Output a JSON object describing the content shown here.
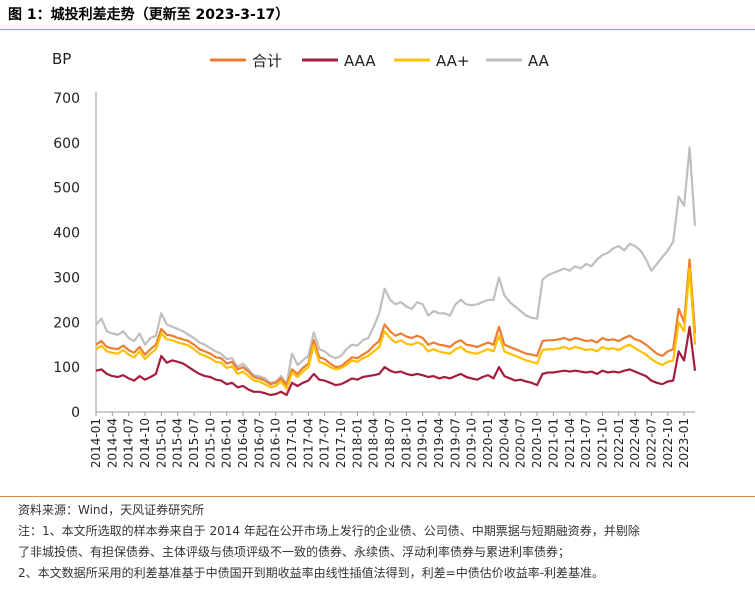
{
  "figure_title": "图 1：城投利差走势（更新至 2023-3-17）",
  "source": "资料来源：Wind，天风证券研究所",
  "notes": [
    "注：1、本文所选取的样本券来自于 2014 年起在公开市场上发行的企业债、公司债、中期票据与短期融资券，并剔除",
    "了非城投债、有担保债券、主体评级与债项评级不一致的债券、永续债、浮动利率债券与累进利率债券；",
    "2、本文数据所采用的利差基准基于中债国开到期收益率由线性插值法得到，利差=中债估价收益率-利差基准。"
  ],
  "chart_data": {
    "type": "line",
    "ylabel": "BP",
    "ylim": [
      0,
      700
    ],
    "yticks": [
      0,
      100,
      200,
      300,
      400,
      500,
      600,
      700
    ],
    "x_start": "2014-01",
    "x_end": "2023-03",
    "tick_labels": [
      "2014-01",
      "2014-04",
      "2014-07",
      "2014-10",
      "2015-01",
      "2015-04",
      "2015-07",
      "2015-10",
      "2016-01",
      "2016-04",
      "2016-07",
      "2016-10",
      "2017-01",
      "2017-04",
      "2017-07",
      "2017-10",
      "2018-01",
      "2018-04",
      "2018-07",
      "2018-10",
      "2019-01",
      "2019-04",
      "2019-07",
      "2019-10",
      "2020-01",
      "2020-04",
      "2020-07",
      "2020-10",
      "2021-01",
      "2021-04",
      "2021-07",
      "2021-10",
      "2022-01",
      "2022-04",
      "2022-07",
      "2022-10",
      "2023-01"
    ],
    "legend_position": "top",
    "grid": false,
    "series": [
      {
        "name": "合计",
        "color": "#ED7D31",
        "x": [
          "2014-01",
          "2014-02",
          "2014-03",
          "2014-04",
          "2014-05",
          "2014-06",
          "2014-07",
          "2014-08",
          "2014-09",
          "2014-10",
          "2014-11",
          "2014-12",
          "2015-01",
          "2015-02",
          "2015-03",
          "2015-04",
          "2015-05",
          "2015-06",
          "2015-07",
          "2015-08",
          "2015-09",
          "2015-10",
          "2015-11",
          "2015-12",
          "2016-01",
          "2016-02",
          "2016-03",
          "2016-04",
          "2016-05",
          "2016-06",
          "2016-07",
          "2016-08",
          "2016-09",
          "2016-10",
          "2016-11",
          "2016-12",
          "2017-01",
          "2017-02",
          "2017-03",
          "2017-04",
          "2017-05",
          "2017-06",
          "2017-07",
          "2017-08",
          "2017-09",
          "2017-10",
          "2017-11",
          "2017-12",
          "2018-01",
          "2018-02",
          "2018-03",
          "2018-04",
          "2018-05",
          "2018-06",
          "2018-07",
          "2018-08",
          "2018-09",
          "2018-10",
          "2018-11",
          "2018-12",
          "2019-01",
          "2019-02",
          "2019-03",
          "2019-04",
          "2019-05",
          "2019-06",
          "2019-07",
          "2019-08",
          "2019-09",
          "2019-10",
          "2019-11",
          "2019-12",
          "2020-01",
          "2020-02",
          "2020-03",
          "2020-04",
          "2020-05",
          "2020-06",
          "2020-07",
          "2020-08",
          "2020-09",
          "2020-10",
          "2020-11",
          "2020-12",
          "2021-01",
          "2021-02",
          "2021-03",
          "2021-04",
          "2021-05",
          "2021-06",
          "2021-07",
          "2021-08",
          "2021-09",
          "2021-10",
          "2021-11",
          "2021-12",
          "2022-01",
          "2022-02",
          "2022-03",
          "2022-04",
          "2022-05",
          "2022-06",
          "2022-07",
          "2022-08",
          "2022-09",
          "2022-10",
          "2022-11",
          "2022-12",
          "2023-01",
          "2023-02",
          "2023-03"
        ],
        "values": [
          150,
          158,
          145,
          142,
          140,
          148,
          138,
          132,
          145,
          128,
          140,
          150,
          185,
          172,
          170,
          165,
          162,
          158,
          150,
          140,
          135,
          130,
          122,
          120,
          108,
          112,
          95,
          100,
          90,
          78,
          75,
          70,
          62,
          65,
          75,
          60,
          95,
          85,
          98,
          108,
          160,
          122,
          118,
          108,
          100,
          102,
          112,
          122,
          120,
          128,
          135,
          148,
          158,
          195,
          180,
          170,
          175,
          168,
          165,
          170,
          165,
          150,
          155,
          150,
          148,
          145,
          155,
          160,
          150,
          148,
          145,
          150,
          155,
          150,
          190,
          150,
          145,
          140,
          135,
          130,
          128,
          125,
          158,
          160,
          160,
          162,
          165,
          160,
          165,
          162,
          158,
          160,
          155,
          165,
          160,
          162,
          158,
          165,
          170,
          162,
          158,
          150,
          140,
          130,
          125,
          135,
          140,
          230,
          200,
          340,
          175
        ]
      },
      {
        "name": "AAA",
        "color": "#A51C3F",
        "x": [
          "2014-01",
          "2014-02",
          "2014-03",
          "2014-04",
          "2014-05",
          "2014-06",
          "2014-07",
          "2014-08",
          "2014-09",
          "2014-10",
          "2014-11",
          "2014-12",
          "2015-01",
          "2015-02",
          "2015-03",
          "2015-04",
          "2015-05",
          "2015-06",
          "2015-07",
          "2015-08",
          "2015-09",
          "2015-10",
          "2015-11",
          "2015-12",
          "2016-01",
          "2016-02",
          "2016-03",
          "2016-04",
          "2016-05",
          "2016-06",
          "2016-07",
          "2016-08",
          "2016-09",
          "2016-10",
          "2016-11",
          "2016-12",
          "2017-01",
          "2017-02",
          "2017-03",
          "2017-04",
          "2017-05",
          "2017-06",
          "2017-07",
          "2017-08",
          "2017-09",
          "2017-10",
          "2017-11",
          "2017-12",
          "2018-01",
          "2018-02",
          "2018-03",
          "2018-04",
          "2018-05",
          "2018-06",
          "2018-07",
          "2018-08",
          "2018-09",
          "2018-10",
          "2018-11",
          "2018-12",
          "2019-01",
          "2019-02",
          "2019-03",
          "2019-04",
          "2019-05",
          "2019-06",
          "2019-07",
          "2019-08",
          "2019-09",
          "2019-10",
          "2019-11",
          "2019-12",
          "2020-01",
          "2020-02",
          "2020-03",
          "2020-04",
          "2020-05",
          "2020-06",
          "2020-07",
          "2020-08",
          "2020-09",
          "2020-10",
          "2020-11",
          "2020-12",
          "2021-01",
          "2021-02",
          "2021-03",
          "2021-04",
          "2021-05",
          "2021-06",
          "2021-07",
          "2021-08",
          "2021-09",
          "2021-10",
          "2021-11",
          "2021-12",
          "2022-01",
          "2022-02",
          "2022-03",
          "2022-04",
          "2022-05",
          "2022-06",
          "2022-07",
          "2022-08",
          "2022-09",
          "2022-10",
          "2022-11",
          "2022-12",
          "2023-01",
          "2023-02",
          "2023-03"
        ],
        "values": [
          92,
          95,
          85,
          80,
          78,
          82,
          75,
          70,
          80,
          72,
          78,
          85,
          125,
          110,
          115,
          112,
          108,
          100,
          92,
          85,
          80,
          78,
          72,
          70,
          62,
          65,
          55,
          58,
          50,
          45,
          45,
          42,
          38,
          40,
          45,
          38,
          65,
          58,
          65,
          70,
          85,
          72,
          70,
          65,
          60,
          62,
          68,
          75,
          72,
          78,
          80,
          82,
          85,
          100,
          92,
          88,
          90,
          85,
          82,
          85,
          82,
          78,
          80,
          75,
          78,
          75,
          80,
          85,
          78,
          75,
          72,
          78,
          82,
          75,
          100,
          80,
          75,
          70,
          72,
          68,
          65,
          60,
          85,
          88,
          88,
          90,
          92,
          90,
          92,
          90,
          88,
          90,
          85,
          92,
          88,
          90,
          88,
          92,
          95,
          90,
          85,
          80,
          70,
          65,
          62,
          68,
          70,
          135,
          115,
          190,
          92
        ]
      },
      {
        "name": "AA+",
        "color": "#FFC000",
        "x": [
          "2014-01",
          "2014-02",
          "2014-03",
          "2014-04",
          "2014-05",
          "2014-06",
          "2014-07",
          "2014-08",
          "2014-09",
          "2014-10",
          "2014-11",
          "2014-12",
          "2015-01",
          "2015-02",
          "2015-03",
          "2015-04",
          "2015-05",
          "2015-06",
          "2015-07",
          "2015-08",
          "2015-09",
          "2015-10",
          "2015-11",
          "2015-12",
          "2016-01",
          "2016-02",
          "2016-03",
          "2016-04",
          "2016-05",
          "2016-06",
          "2016-07",
          "2016-08",
          "2016-09",
          "2016-10",
          "2016-11",
          "2016-12",
          "2017-01",
          "2017-02",
          "2017-03",
          "2017-04",
          "2017-05",
          "2017-06",
          "2017-07",
          "2017-08",
          "2017-09",
          "2017-10",
          "2017-11",
          "2017-12",
          "2018-01",
          "2018-02",
          "2018-03",
          "2018-04",
          "2018-05",
          "2018-06",
          "2018-07",
          "2018-08",
          "2018-09",
          "2018-10",
          "2018-11",
          "2018-12",
          "2019-01",
          "2019-02",
          "2019-03",
          "2019-04",
          "2019-05",
          "2019-06",
          "2019-07",
          "2019-08",
          "2019-09",
          "2019-10",
          "2019-11",
          "2019-12",
          "2020-01",
          "2020-02",
          "2020-03",
          "2020-04",
          "2020-05",
          "2020-06",
          "2020-07",
          "2020-08",
          "2020-09",
          "2020-10",
          "2020-11",
          "2020-12",
          "2021-01",
          "2021-02",
          "2021-03",
          "2021-04",
          "2021-05",
          "2021-06",
          "2021-07",
          "2021-08",
          "2021-09",
          "2021-10",
          "2021-11",
          "2021-12",
          "2022-01",
          "2022-02",
          "2022-03",
          "2022-04",
          "2022-05",
          "2022-06",
          "2022-07",
          "2022-08",
          "2022-09",
          "2022-10",
          "2022-11",
          "2022-12",
          "2023-01",
          "2023-02",
          "2023-03"
        ],
        "values": [
          140,
          148,
          135,
          132,
          130,
          138,
          128,
          122,
          135,
          118,
          130,
          140,
          175,
          162,
          160,
          155,
          152,
          148,
          140,
          130,
          125,
          120,
          112,
          110,
          98,
          102,
          85,
          90,
          80,
          70,
          68,
          62,
          55,
          58,
          68,
          52,
          88,
          78,
          90,
          100,
          150,
          112,
          108,
          100,
          95,
          98,
          105,
          115,
          112,
          120,
          125,
          135,
          145,
          180,
          165,
          155,
          160,
          152,
          150,
          155,
          150,
          135,
          140,
          135,
          132,
          130,
          140,
          145,
          135,
          132,
          130,
          135,
          140,
          135,
          170,
          135,
          130,
          125,
          120,
          115,
          112,
          108,
          138,
          140,
          140,
          142,
          145,
          140,
          145,
          142,
          138,
          140,
          135,
          145,
          140,
          142,
          138,
          145,
          150,
          142,
          135,
          128,
          118,
          110,
          105,
          112,
          115,
          200,
          180,
          320,
          150
        ]
      },
      {
        "name": "AA",
        "color": "#BFBFBF",
        "x": [
          "2014-01",
          "2014-02",
          "2014-03",
          "2014-04",
          "2014-05",
          "2014-06",
          "2014-07",
          "2014-08",
          "2014-09",
          "2014-10",
          "2014-11",
          "2014-12",
          "2015-01",
          "2015-02",
          "2015-03",
          "2015-04",
          "2015-05",
          "2015-06",
          "2015-07",
          "2015-08",
          "2015-09",
          "2015-10",
          "2015-11",
          "2015-12",
          "2016-01",
          "2016-02",
          "2016-03",
          "2016-04",
          "2016-05",
          "2016-06",
          "2016-07",
          "2016-08",
          "2016-09",
          "2016-10",
          "2016-11",
          "2016-12",
          "2017-01",
          "2017-02",
          "2017-03",
          "2017-04",
          "2017-05",
          "2017-06",
          "2017-07",
          "2017-08",
          "2017-09",
          "2017-10",
          "2017-11",
          "2017-12",
          "2018-01",
          "2018-02",
          "2018-03",
          "2018-04",
          "2018-05",
          "2018-06",
          "2018-07",
          "2018-08",
          "2018-09",
          "2018-10",
          "2018-11",
          "2018-12",
          "2019-01",
          "2019-02",
          "2019-03",
          "2019-04",
          "2019-05",
          "2019-06",
          "2019-07",
          "2019-08",
          "2019-09",
          "2019-10",
          "2019-11",
          "2019-12",
          "2020-01",
          "2020-02",
          "2020-03",
          "2020-04",
          "2020-05",
          "2020-06",
          "2020-07",
          "2020-08",
          "2020-09",
          "2020-10",
          "2020-11",
          "2020-12",
          "2021-01",
          "2021-02",
          "2021-03",
          "2021-04",
          "2021-05",
          "2021-06",
          "2021-07",
          "2021-08",
          "2021-09",
          "2021-10",
          "2021-11",
          "2021-12",
          "2022-01",
          "2022-02",
          "2022-03",
          "2022-04",
          "2022-05",
          "2022-06",
          "2022-07",
          "2022-08",
          "2022-09",
          "2022-10",
          "2022-11",
          "2022-12",
          "2023-01",
          "2023-02",
          "2023-03"
        ],
        "values": [
          195,
          208,
          180,
          175,
          172,
          180,
          165,
          158,
          175,
          150,
          165,
          170,
          220,
          195,
          190,
          185,
          180,
          172,
          165,
          155,
          150,
          142,
          135,
          130,
          118,
          120,
          100,
          108,
          95,
          82,
          80,
          75,
          65,
          68,
          80,
          62,
          130,
          105,
          115,
          125,
          178,
          140,
          135,
          125,
          120,
          125,
          140,
          150,
          148,
          160,
          165,
          190,
          220,
          275,
          250,
          240,
          245,
          235,
          230,
          245,
          240,
          215,
          225,
          220,
          220,
          215,
          240,
          250,
          240,
          238,
          240,
          245,
          250,
          250,
          300,
          260,
          245,
          235,
          225,
          215,
          210,
          208,
          295,
          305,
          310,
          315,
          320,
          315,
          325,
          320,
          330,
          325,
          340,
          350,
          355,
          365,
          370,
          360,
          375,
          370,
          360,
          340,
          315,
          330,
          345,
          360,
          380,
          480,
          460,
          590,
          415
        ]
      }
    ]
  }
}
